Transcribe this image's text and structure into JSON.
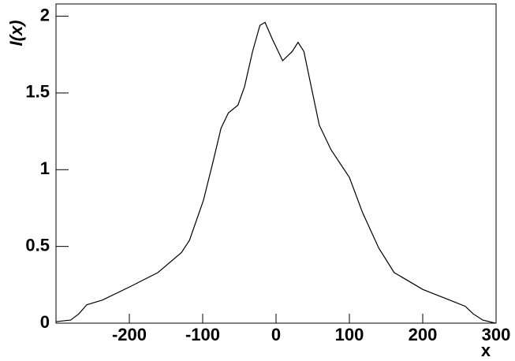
{
  "chart_data": {
    "type": "line",
    "xlabel": "x",
    "ylabel": "I(x)",
    "x": [
      -300,
      -280,
      -269,
      -258,
      -237,
      -198,
      -161,
      -129,
      -118,
      -99,
      -86,
      -75,
      -65,
      -52,
      -43,
      -32,
      -22,
      -15,
      -5,
      9,
      22,
      30,
      38,
      48,
      59,
      75,
      100,
      118,
      140,
      161,
      200,
      237,
      258,
      269,
      282,
      299
    ],
    "series": [
      {
        "color": "#000000",
        "values": [
          0.01,
          0.02,
          0.06,
          0.12,
          0.15,
          0.24,
          0.33,
          0.46,
          0.54,
          0.8,
          1.05,
          1.27,
          1.37,
          1.42,
          1.54,
          1.77,
          1.94,
          1.96,
          1.85,
          1.71,
          1.77,
          1.83,
          1.77,
          1.54,
          1.29,
          1.13,
          0.95,
          0.72,
          0.49,
          0.33,
          0.22,
          0.15,
          0.11,
          0.06,
          0.02,
          0.0
        ]
      }
    ],
    "xlim": [
      -300,
      300
    ],
    "xticks": [
      -200,
      -100,
      0,
      100,
      200,
      300
    ],
    "ylim": [
      0,
      2.08
    ],
    "yticks": [
      0,
      0.5,
      1,
      1.5,
      2
    ]
  }
}
